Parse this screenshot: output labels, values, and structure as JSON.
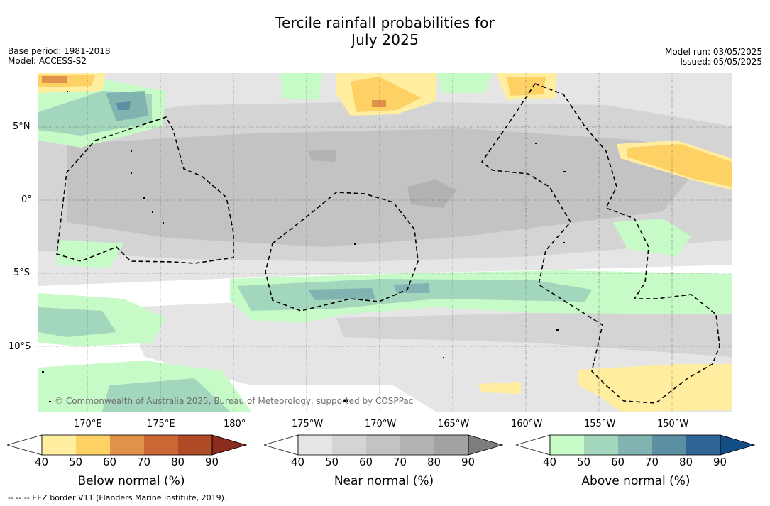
{
  "title_line1": "Tercile rainfall probabilities for",
  "title_line2": "July 2025",
  "base_period": "Base period: 1981-2018",
  "model": "Model: ACCESS-S2",
  "model_run": "Model run: 03/05/2025",
  "issued": "Issued: 05/05/2025",
  "lat_labels": [
    "5°N",
    "0°",
    "5°S",
    "10°S"
  ],
  "lon_labels": [
    "170°E",
    "175°E",
    "180°",
    "175°W",
    "170°W",
    "165°W",
    "160°W",
    "155°W",
    "150°W"
  ],
  "copyright": "© Commonwealth of Australia 2025, Bureau of Meteorology, supported by COSPPac",
  "legends": {
    "below": {
      "label": "Below normal (%)",
      "ticks": [
        "40",
        "50",
        "60",
        "70",
        "80",
        "90"
      ],
      "colors": [
        "#ffffff",
        "#ffeda0",
        "#fed165",
        "#e0914a",
        "#cc6634",
        "#ae4a26",
        "#8a2c1d"
      ]
    },
    "near": {
      "label": "Near normal (%)",
      "ticks": [
        "40",
        "50",
        "60",
        "70",
        "80",
        "90"
      ],
      "colors": [
        "#ffffff",
        "#e5e5e5",
        "#d4d4d4",
        "#c3c3c3",
        "#b2b2b2",
        "#a2a2a2",
        "#7d7d7d"
      ]
    },
    "above": {
      "label": "Above normal (%)",
      "ticks": [
        "40",
        "50",
        "60",
        "70",
        "80",
        "90"
      ],
      "colors": [
        "#ffffff",
        "#c6fac6",
        "#a3d7bd",
        "#81b4b0",
        "#5b90a3",
        "#2e6496",
        "#124d86"
      ]
    }
  },
  "footnote": "--  --  -- EEZ border V11 (Flanders Marine Institute, 2019)."
}
